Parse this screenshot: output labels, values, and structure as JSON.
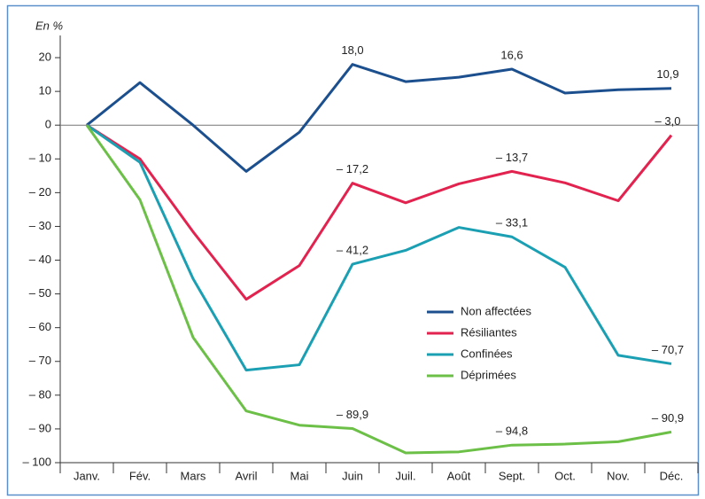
{
  "chart_data": {
    "type": "line",
    "y_label": "En %",
    "categories": [
      "Janv.",
      "Fév.",
      "Mars",
      "Avril",
      "Mai",
      "Juin",
      "Juil.",
      "Août",
      "Sept.",
      "Oct.",
      "Nov.",
      "Déc."
    ],
    "ylim": [
      -100,
      25
    ],
    "yticks": [
      20,
      10,
      0,
      {
        "value": -10,
        "label": "– 10"
      },
      {
        "value": -20,
        "label": "– 20"
      },
      {
        "value": -30,
        "label": "– 30"
      },
      {
        "value": -40,
        "label": "– 40"
      },
      {
        "value": -50,
        "label": "– 50"
      },
      {
        "value": -60,
        "label": "– 60"
      },
      {
        "value": -70,
        "label": "– 70"
      },
      {
        "value": -80,
        "label": "– 80"
      },
      {
        "value": -90,
        "label": "– 90"
      },
      {
        "value": -100,
        "label": "– 100"
      }
    ],
    "series": [
      {
        "name": "Non affectées",
        "color": "#1c4f8e",
        "values": [
          0,
          12.6,
          0,
          -13.7,
          -2.1,
          18.0,
          12.9,
          14.2,
          16.6,
          9.5,
          10.5,
          10.9
        ],
        "value_labels": [
          null,
          null,
          null,
          null,
          null,
          "18,0",
          null,
          null,
          "16,6",
          null,
          null,
          "10,9"
        ]
      },
      {
        "name": "Résiliantes",
        "color": "#e3234f",
        "values": [
          0,
          -10,
          -31.6,
          -51.6,
          -41.6,
          -17.2,
          -23,
          -17.4,
          -13.7,
          -17.1,
          -22.4,
          -3.0
        ],
        "value_labels": [
          null,
          null,
          null,
          null,
          null,
          "– 17,2",
          null,
          null,
          "– 13,7",
          null,
          null,
          "– 3,0"
        ]
      },
      {
        "name": "Confinées",
        "color": "#1b9fb3",
        "values": [
          0,
          -11,
          -45.5,
          -72.6,
          -71,
          -41.2,
          -37.1,
          -30.3,
          -33.1,
          -42.1,
          -68.2,
          -70.7
        ],
        "value_labels": [
          null,
          null,
          null,
          null,
          null,
          "– 41,2",
          null,
          null,
          "– 33,1",
          null,
          null,
          "– 70,7"
        ]
      },
      {
        "name": "Déprimées",
        "color": "#6cbf47",
        "values": [
          0,
          -22.1,
          -62.9,
          -84.7,
          -88.9,
          -89.9,
          -97.1,
          -96.8,
          -94.8,
          -94.5,
          -93.8,
          -90.9
        ],
        "value_labels": [
          null,
          null,
          null,
          null,
          null,
          "– 89,9",
          null,
          null,
          "– 94,8",
          null,
          null,
          "– 90,9"
        ]
      }
    ]
  }
}
